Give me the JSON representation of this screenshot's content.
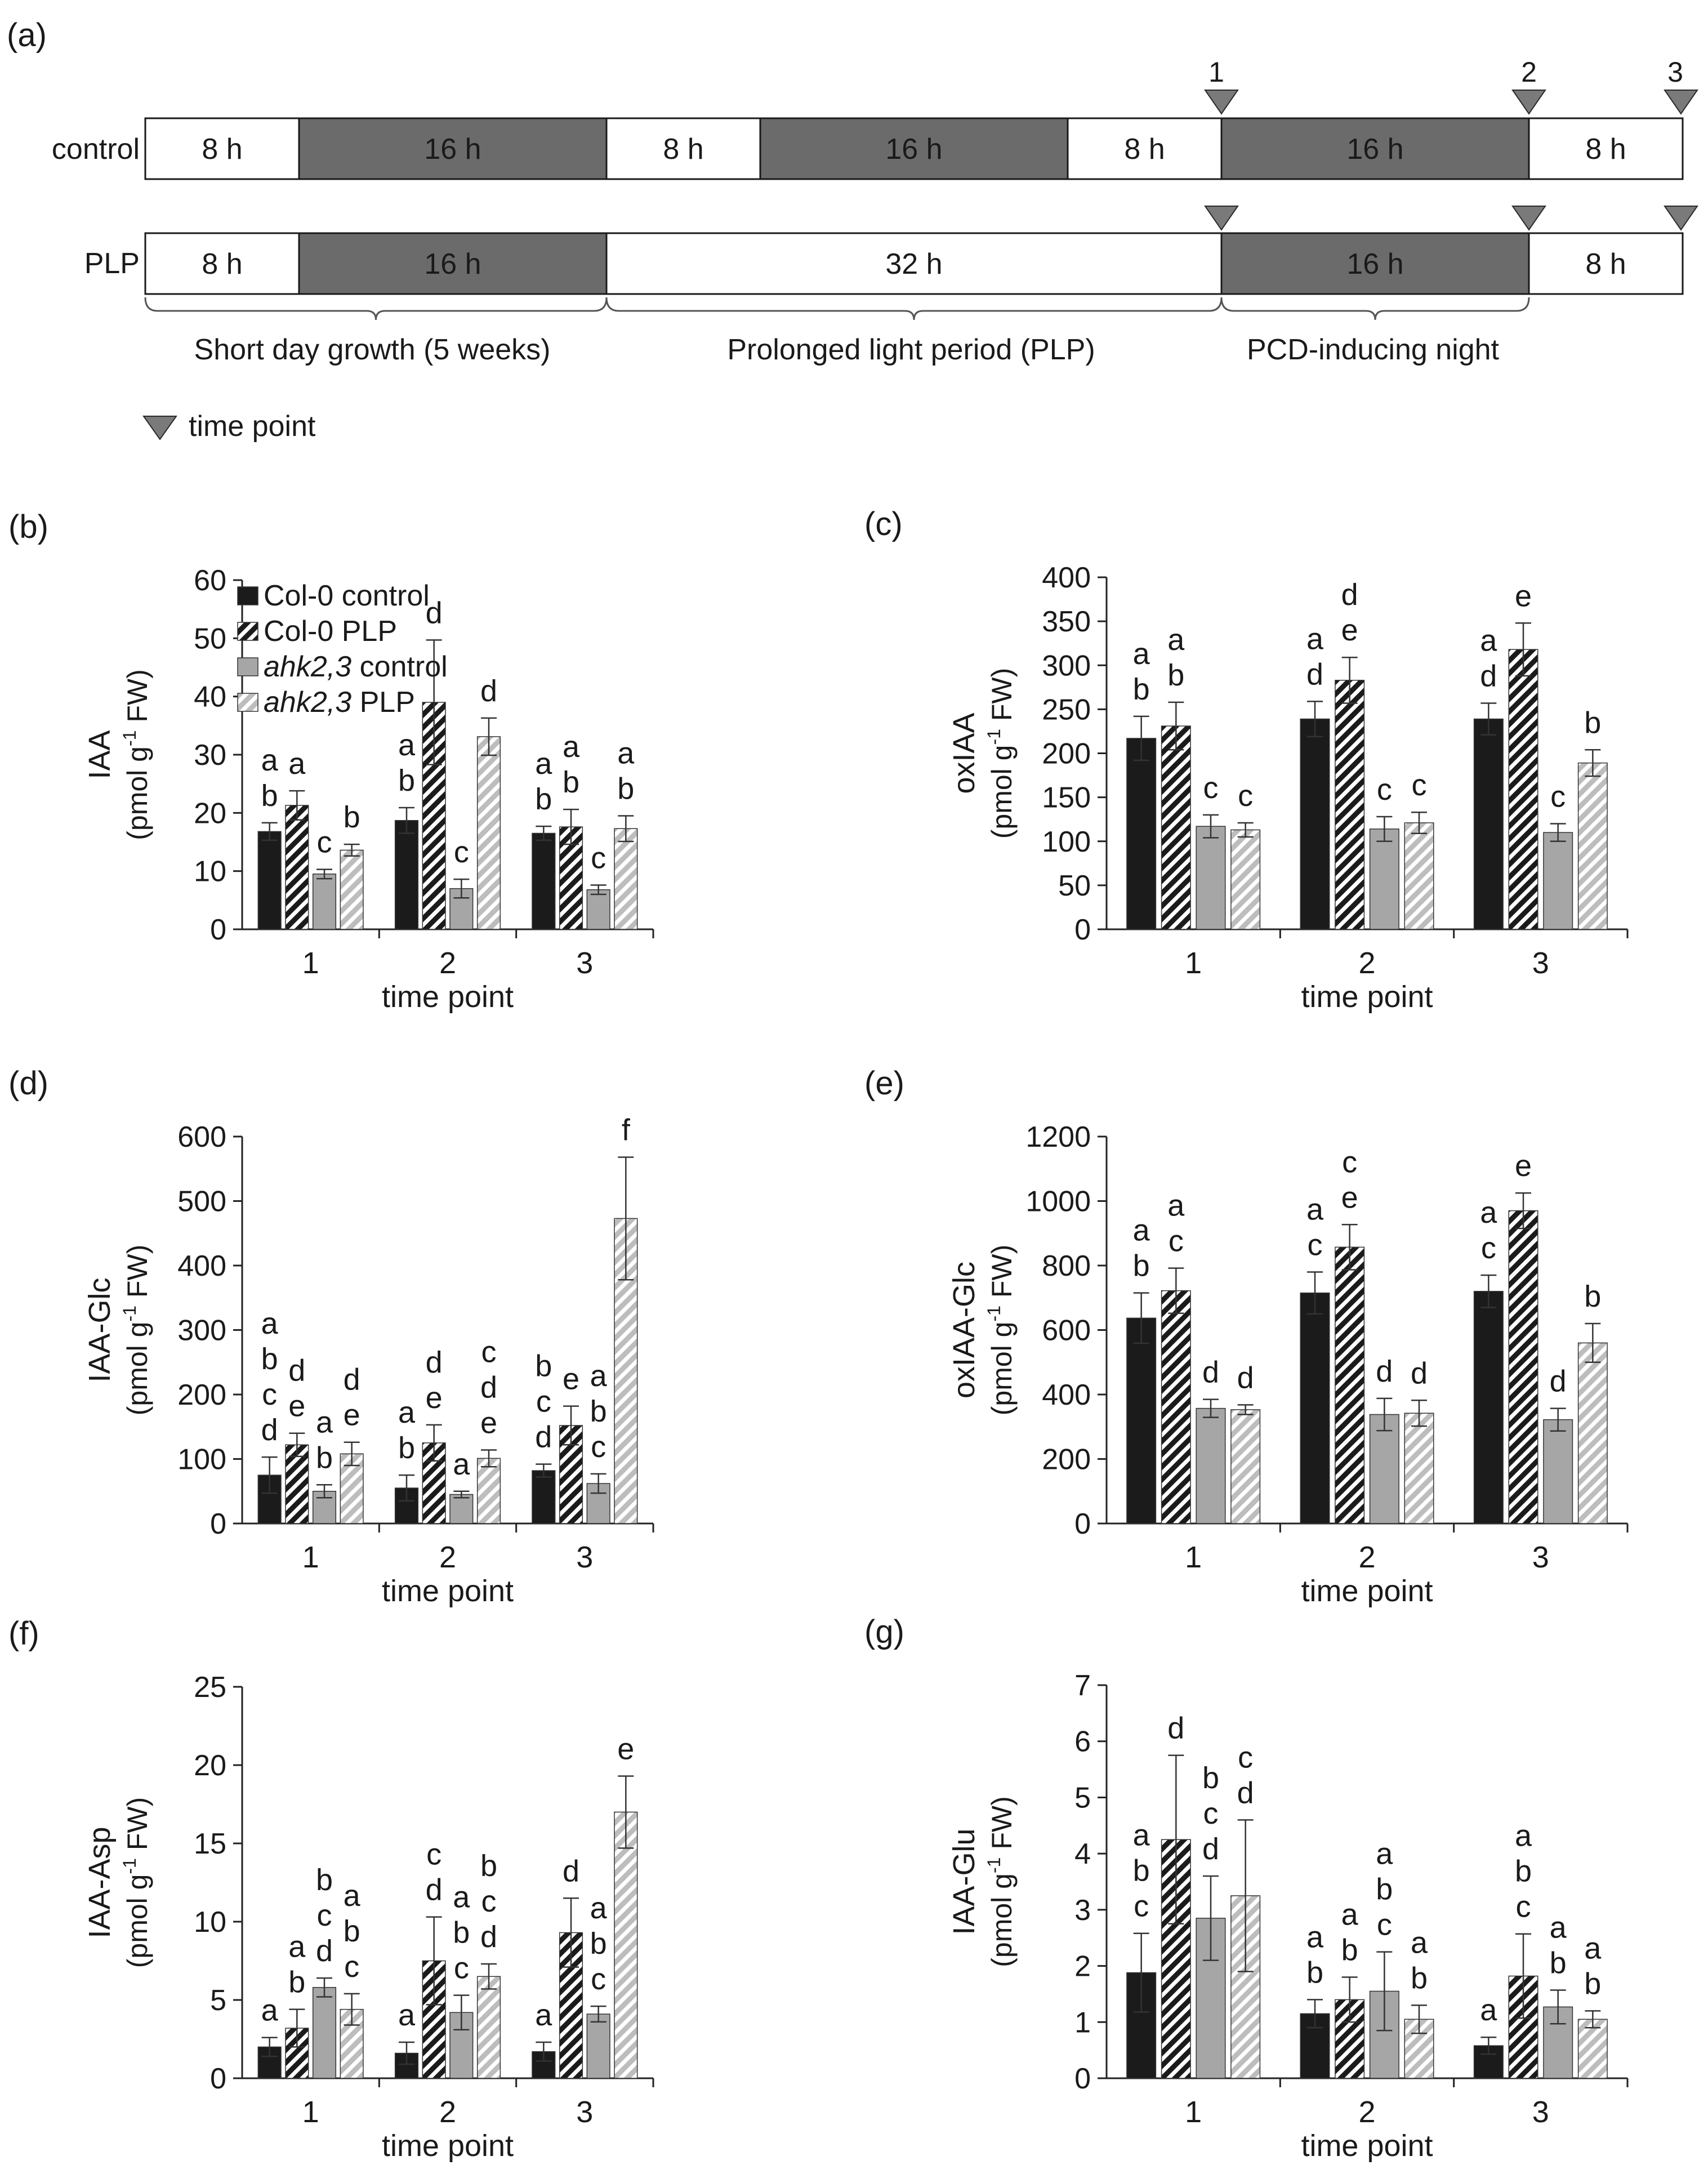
{
  "colors": {
    "black": "#1b1b1b",
    "gray": "#a6a6a6",
    "dark_cell": "#6b6b6b",
    "light_cell": "#ffffff",
    "marker": "#7a7a7a"
  },
  "legend": [
    {
      "label": "Col-0 control",
      "style": "solid-black"
    },
    {
      "label": "Col-0 PLP",
      "style": "hatch-black"
    },
    {
      "label": "ahk2,3 control",
      "style": "solid-gray",
      "italic_part": "ahk2,3"
    },
    {
      "label": "ahk2,3 PLP",
      "style": "hatch-gray",
      "italic_part": "ahk2,3"
    }
  ],
  "panel_a": {
    "letter": "(a)",
    "control_label": "control",
    "plp_label": "PLP",
    "control_row": [
      {
        "text": "8 h",
        "dark": false,
        "w": 8
      },
      {
        "text": "16 h",
        "dark": true,
        "w": 16
      },
      {
        "text": "8 h",
        "dark": false,
        "w": 8
      },
      {
        "text": "16 h",
        "dark": true,
        "w": 16
      },
      {
        "text": "8 h",
        "dark": false,
        "w": 8
      },
      {
        "text": "16 h",
        "dark": true,
        "w": 16
      },
      {
        "text": "8 h",
        "dark": false,
        "w": 8
      }
    ],
    "plp_row": [
      {
        "text": "8 h",
        "dark": false,
        "w": 8
      },
      {
        "text": "16 h",
        "dark": true,
        "w": 16
      },
      {
        "text": "32 h",
        "dark": false,
        "w": 32
      },
      {
        "text": "16 h",
        "dark": true,
        "w": 16
      },
      {
        "text": "8 h",
        "dark": false,
        "w": 8
      }
    ],
    "time_point_numbers": [
      "1",
      "2",
      "3"
    ],
    "phases": [
      "Short day growth (5 weeks)",
      "Prolonged light period (PLP)",
      "PCD-inducing night"
    ],
    "marker_legend": "time point"
  },
  "chart_data": [
    {
      "panel": "(b)",
      "type": "bar",
      "ylabel": "IAA",
      "yunit": "(pmol g-1 FW)",
      "ylim": [
        0,
        60
      ],
      "yticks": [
        0,
        10,
        20,
        30,
        40,
        50,
        60
      ],
      "xlabel": "time point",
      "categories": [
        "1",
        "2",
        "3"
      ],
      "has_legend": true,
      "series": [
        {
          "name": "Col-0 control",
          "values": [
            16.8,
            18.7,
            16.5
          ],
          "errors": [
            1.5,
            2.2,
            1.2
          ],
          "letters": [
            [
              "a",
              "b"
            ],
            [
              "a",
              "b"
            ],
            [
              "a",
              "b"
            ]
          ]
        },
        {
          "name": "Col-0 PLP",
          "values": [
            21.3,
            39.0,
            17.6
          ],
          "errors": [
            2.5,
            10.7,
            3.0
          ],
          "letters": [
            [
              "a"
            ],
            [
              "d"
            ],
            [
              "a",
              "b"
            ]
          ]
        },
        {
          "name": "ahk2,3 control",
          "values": [
            9.5,
            7.0,
            6.8
          ],
          "errors": [
            0.8,
            1.6,
            0.8
          ],
          "letters": [
            [
              "c"
            ],
            [
              "c"
            ],
            [
              "c"
            ]
          ]
        },
        {
          "name": "ahk2,3 PLP",
          "values": [
            13.6,
            33.1,
            17.3
          ],
          "errors": [
            1.0,
            3.2,
            2.2
          ],
          "letters": [
            [
              "b"
            ],
            [
              "d"
            ],
            [
              "a",
              "b"
            ]
          ]
        }
      ]
    },
    {
      "panel": "(c)",
      "type": "bar",
      "ylabel": "oxIAA",
      "yunit": "(pmol g-1 FW)",
      "ylim": [
        0,
        400
      ],
      "yticks": [
        0,
        50,
        100,
        150,
        200,
        250,
        300,
        350,
        400
      ],
      "xlabel": "time point",
      "categories": [
        "1",
        "2",
        "3"
      ],
      "has_legend": false,
      "series": [
        {
          "name": "Col-0 control",
          "values": [
            217,
            239,
            239
          ],
          "errors": [
            25,
            20,
            18
          ],
          "letters": [
            [
              "a",
              "b"
            ],
            [
              "a",
              "d"
            ],
            [
              "a",
              "d"
            ]
          ]
        },
        {
          "name": "Col-0 PLP",
          "values": [
            231,
            283,
            318
          ],
          "errors": [
            27,
            26,
            30
          ],
          "letters": [
            [
              "a",
              "b"
            ],
            [
              "d",
              "e"
            ],
            [
              "e"
            ]
          ]
        },
        {
          "name": "ahk2,3 control",
          "values": [
            117,
            114,
            110
          ],
          "errors": [
            13,
            14,
            10
          ],
          "letters": [
            [
              "c"
            ],
            [
              "c"
            ],
            [
              "c"
            ]
          ]
        },
        {
          "name": "ahk2,3 PLP",
          "values": [
            113,
            121,
            189
          ],
          "errors": [
            8,
            12,
            15
          ],
          "letters": [
            [
              "c"
            ],
            [
              "c"
            ],
            [
              "b"
            ]
          ]
        }
      ]
    },
    {
      "panel": "(d)",
      "type": "bar",
      "ylabel": "IAA-Glc",
      "yunit": "(pmol g-1 FW)",
      "ylim": [
        0,
        600
      ],
      "yticks": [
        0,
        100,
        200,
        300,
        400,
        500,
        600
      ],
      "xlabel": "time point",
      "categories": [
        "1",
        "2",
        "3"
      ],
      "has_legend": false,
      "series": [
        {
          "name": "Col-0 control",
          "values": [
            75,
            55,
            82
          ],
          "errors": [
            28,
            20,
            10
          ],
          "letters": [
            [
              "a",
              "b",
              "c",
              "d"
            ],
            [
              "a",
              "b"
            ],
            [
              "b",
              "c",
              "d"
            ]
          ]
        },
        {
          "name": "Col-0 PLP",
          "values": [
            122,
            125,
            152
          ],
          "errors": [
            18,
            28,
            30
          ],
          "letters": [
            [
              "d",
              "e"
            ],
            [
              "d",
              "e"
            ],
            [
              "e"
            ]
          ]
        },
        {
          "name": "ahk2,3 control",
          "values": [
            50,
            45,
            62
          ],
          "errors": [
            10,
            5,
            15
          ],
          "letters": [
            [
              "a",
              "b"
            ],
            [
              "a"
            ],
            [
              "a",
              "b",
              "c"
            ]
          ]
        },
        {
          "name": "ahk2,3 PLP",
          "values": [
            108,
            101,
            473
          ],
          "errors": [
            18,
            13,
            95
          ],
          "letters": [
            [
              "d",
              "e"
            ],
            [
              "c",
              "d",
              "e"
            ],
            [
              "f"
            ]
          ]
        }
      ]
    },
    {
      "panel": "(e)",
      "type": "bar",
      "ylabel": "oxIAA-Glc",
      "yunit": "(pmol g-1 FW)",
      "ylim": [
        0,
        1200
      ],
      "yticks": [
        0,
        200,
        400,
        600,
        800,
        1000,
        1200
      ],
      "xlabel": "time point",
      "categories": [
        "1",
        "2",
        "3"
      ],
      "has_legend": false,
      "series": [
        {
          "name": "Col-0 control",
          "values": [
            637,
            715,
            720
          ],
          "errors": [
            78,
            65,
            50
          ],
          "letters": [
            [
              "a",
              "b"
            ],
            [
              "a",
              "c"
            ],
            [
              "a",
              "c"
            ]
          ]
        },
        {
          "name": "Col-0 PLP",
          "values": [
            722,
            857,
            970
          ],
          "errors": [
            70,
            70,
            55
          ],
          "letters": [
            [
              "a",
              "c"
            ],
            [
              "c",
              "e"
            ],
            [
              "e"
            ]
          ]
        },
        {
          "name": "ahk2,3 control",
          "values": [
            357,
            338,
            322
          ],
          "errors": [
            28,
            50,
            35
          ],
          "letters": [
            [
              "d"
            ],
            [
              "d"
            ],
            [
              "d"
            ]
          ]
        },
        {
          "name": "ahk2,3 PLP",
          "values": [
            353,
            342,
            560
          ],
          "errors": [
            15,
            40,
            60
          ],
          "letters": [
            [
              "d"
            ],
            [
              "d"
            ],
            [
              "b"
            ]
          ]
        }
      ]
    },
    {
      "panel": "(f)",
      "type": "bar",
      "ylabel": "IAA-Asp",
      "yunit": "(pmol g-1 FW)",
      "ylim": [
        0,
        25
      ],
      "yticks": [
        0,
        5,
        10,
        15,
        20,
        25
      ],
      "xlabel": "time point",
      "categories": [
        "1",
        "2",
        "3"
      ],
      "has_legend": false,
      "series": [
        {
          "name": "Col-0 control",
          "values": [
            2.0,
            1.6,
            1.7
          ],
          "errors": [
            0.6,
            0.7,
            0.6
          ],
          "letters": [
            [
              "a"
            ],
            [
              "a"
            ],
            [
              "a"
            ]
          ]
        },
        {
          "name": "Col-0 PLP",
          "values": [
            3.2,
            7.5,
            9.3
          ],
          "errors": [
            1.2,
            2.8,
            2.2
          ],
          "letters": [
            [
              "a",
              "b"
            ],
            [
              "c",
              "d"
            ],
            [
              "d"
            ]
          ]
        },
        {
          "name": "ahk2,3 control",
          "values": [
            5.8,
            4.2,
            4.1
          ],
          "errors": [
            0.6,
            1.1,
            0.5
          ],
          "letters": [
            [
              "b",
              "c",
              "d"
            ],
            [
              "a",
              "b",
              "c"
            ],
            [
              "a",
              "b",
              "c"
            ]
          ]
        },
        {
          "name": "ahk2,3 PLP",
          "values": [
            4.4,
            6.5,
            17.0
          ],
          "errors": [
            1.0,
            0.8,
            2.3
          ],
          "letters": [
            [
              "a",
              "b",
              "c"
            ],
            [
              "b",
              "c",
              "d"
            ],
            [
              "e"
            ]
          ]
        }
      ]
    },
    {
      "panel": "(g)",
      "type": "bar",
      "ylabel": "IAA-Glu",
      "yunit": "(pmol g-1 FW)",
      "ylim": [
        0,
        7
      ],
      "yticks": [
        0,
        1,
        2,
        3,
        4,
        5,
        6,
        7
      ],
      "xlabel": "time point",
      "categories": [
        "1",
        "2",
        "3"
      ],
      "has_legend": false,
      "series": [
        {
          "name": "Col-0 control",
          "values": [
            1.88,
            1.15,
            0.58
          ],
          "errors": [
            0.7,
            0.25,
            0.15
          ],
          "letters": [
            [
              "a",
              "b",
              "c"
            ],
            [
              "a",
              "b"
            ],
            [
              "a"
            ]
          ]
        },
        {
          "name": "Col-0 PLP",
          "values": [
            4.25,
            1.4,
            1.82
          ],
          "errors": [
            1.5,
            0.4,
            0.75
          ],
          "letters": [
            [
              "d"
            ],
            [
              "a",
              "b"
            ],
            [
              "a",
              "b",
              "c"
            ]
          ]
        },
        {
          "name": "ahk2,3 control",
          "values": [
            2.85,
            1.55,
            1.27
          ],
          "errors": [
            0.75,
            0.7,
            0.3
          ],
          "letters": [
            [
              "b",
              "c",
              "d"
            ],
            [
              "a",
              "b",
              "c"
            ],
            [
              "a",
              "b"
            ]
          ]
        },
        {
          "name": "ahk2,3 PLP",
          "values": [
            3.25,
            1.05,
            1.05
          ],
          "errors": [
            1.35,
            0.25,
            0.15
          ],
          "letters": [
            [
              "c",
              "d"
            ],
            [
              "a",
              "b"
            ],
            [
              "a",
              "b"
            ]
          ]
        }
      ]
    }
  ]
}
